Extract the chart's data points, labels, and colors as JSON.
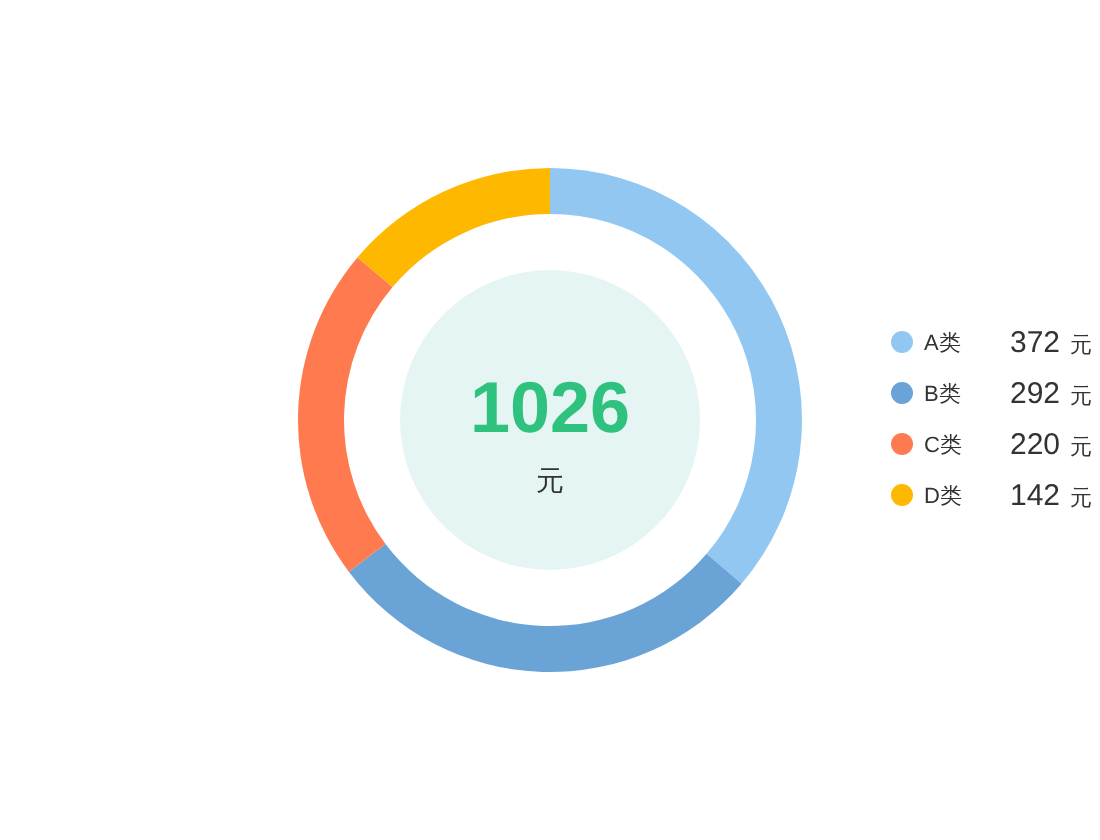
{
  "chart_data": {
    "type": "donut",
    "categories": [
      "A类",
      "B类",
      "C类",
      "D类"
    ],
    "values": [
      372,
      292,
      220,
      142
    ],
    "colors": [
      "#91c7f0",
      "#6aa3d6",
      "#ff7b4f",
      "#ffb800"
    ],
    "value_labels": [
      "372 元",
      "292 元",
      "220 元",
      "142 元"
    ],
    "annotations": [
      "1026",
      "元"
    ],
    "legend": "right"
  }
}
